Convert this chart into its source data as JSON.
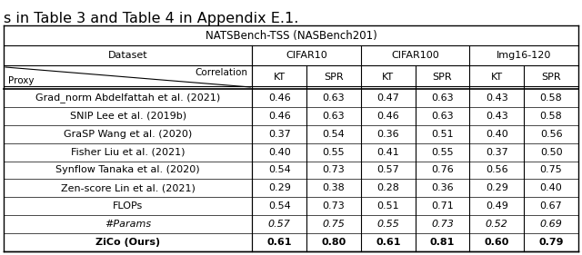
{
  "title": "NATSBench-TSS (NASBench201)",
  "caption": "s in Table 3 and Table 4 in Appendix E.1.",
  "datasets": [
    "CIFAR10",
    "CIFAR100",
    "Img16-120"
  ],
  "metrics": [
    "KT",
    "SPR"
  ],
  "rows": [
    {
      "name": "Grad_norm Abdelfattah et al. (2021)",
      "italic": false,
      "bold": false,
      "values": [
        "0.46",
        "0.63",
        "0.47",
        "0.63",
        "0.43",
        "0.58"
      ]
    },
    {
      "name": "SNIP Lee et al. (2019b)",
      "italic": false,
      "bold": false,
      "values": [
        "0.46",
        "0.63",
        "0.46",
        "0.63",
        "0.43",
        "0.58"
      ]
    },
    {
      "name": "GraSP Wang et al. (2020)",
      "italic": false,
      "bold": false,
      "values": [
        "0.37",
        "0.54",
        "0.36",
        "0.51",
        "0.40",
        "0.56"
      ]
    },
    {
      "name": "Fisher Liu et al. (2021)",
      "italic": false,
      "bold": false,
      "values": [
        "0.40",
        "0.55",
        "0.41",
        "0.55",
        "0.37",
        "0.50"
      ]
    },
    {
      "name": "Synflow Tanaka et al. (2020)",
      "italic": false,
      "bold": false,
      "values": [
        "0.54",
        "0.73",
        "0.57",
        "0.76",
        "0.56",
        "0.75"
      ]
    },
    {
      "name": "Zen-score Lin et al. (2021)",
      "italic": false,
      "bold": false,
      "values": [
        "0.29",
        "0.38",
        "0.28",
        "0.36",
        "0.29",
        "0.40"
      ]
    },
    {
      "name": "FLOPs",
      "italic": false,
      "bold": false,
      "values": [
        "0.54",
        "0.73",
        "0.51",
        "0.71",
        "0.49",
        "0.67"
      ]
    },
    {
      "name": "#Params",
      "italic": true,
      "bold": false,
      "values": [
        "0.57",
        "0.75",
        "0.55",
        "0.73",
        "0.52",
        "0.69"
      ]
    },
    {
      "name": "ZiCo (Ours)",
      "italic": false,
      "bold": true,
      "values": [
        "0.61",
        "0.80",
        "0.61",
        "0.81",
        "0.60",
        "0.79"
      ]
    }
  ],
  "bg_color": "#ffffff",
  "font_size": 8.0,
  "caption_font_size": 11.5,
  "title_font_size": 8.5
}
